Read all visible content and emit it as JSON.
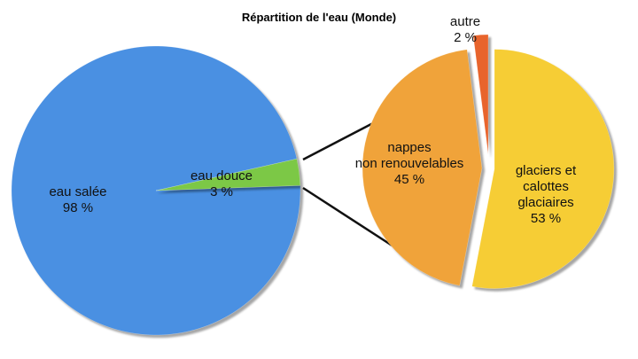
{
  "chart_data": [
    {
      "type": "pie",
      "title": "Répartition de l'eau (Monde)",
      "categories": [
        "eau salée",
        "eau douce"
      ],
      "values": [
        98,
        3
      ],
      "value_labels": [
        "98 %",
        "3 %"
      ],
      "colors": [
        "#4a90e2",
        "#7cc846"
      ]
    },
    {
      "type": "pie",
      "categories": [
        "glaciers et\ncalottes glaciaires",
        "nappes\nnon renouvelables",
        "autre"
      ],
      "values": [
        53,
        45,
        2
      ],
      "value_labels": [
        "53 %",
        "45 %",
        "2 %"
      ],
      "colors": [
        "#f6cd35",
        "#f0a33a",
        "#e8642c"
      ]
    }
  ]
}
